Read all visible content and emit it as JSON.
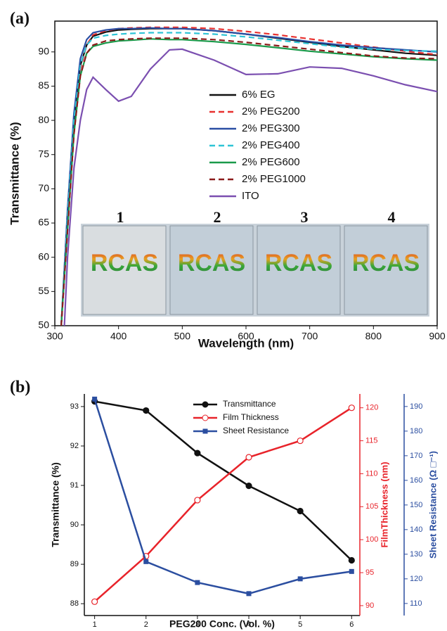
{
  "chart_data": [
    {
      "type": "line",
      "panel": "(a)",
      "xlabel": "Wavelength (nm)",
      "ylabel": "Transmittance (%)",
      "x": [
        310,
        315,
        320,
        330,
        340,
        350,
        360,
        380,
        400,
        420,
        450,
        480,
        500,
        550,
        600,
        650,
        700,
        750,
        800,
        850,
        900
      ],
      "xlim": [
        300,
        900
      ],
      "xticks": [
        300,
        400,
        500,
        600,
        700,
        800,
        900
      ],
      "ylim": [
        50,
        94.5
      ],
      "yticks": [
        50,
        55,
        60,
        65,
        70,
        75,
        80,
        85,
        90
      ],
      "legend": "center",
      "series": [
        {
          "name": "6% EG",
          "color": "#111111",
          "dash": false,
          "values": [
            50,
            58,
            66,
            80,
            88,
            91,
            92.3,
            92.9,
            93.2,
            93.3,
            93.4,
            93.4,
            93.4,
            93.1,
            92.6,
            92,
            91.4,
            90.8,
            90.3,
            89.8,
            89.5
          ]
        },
        {
          "name": "2% PEG200",
          "color": "#e8312f",
          "dash": true,
          "values": [
            50,
            57.5,
            65,
            79,
            87.5,
            91,
            92.5,
            93.1,
            93.4,
            93.5,
            93.6,
            93.6,
            93.6,
            93.4,
            93,
            92.5,
            91.9,
            91.3,
            90.7,
            90.1,
            89.6
          ]
        },
        {
          "name": "2% PEG300",
          "color": "#2a4ea3",
          "dash": false,
          "values": [
            50,
            58.5,
            67,
            81,
            89,
            91.8,
            92.8,
            93.2,
            93.4,
            93.4,
            93.5,
            93.4,
            93.4,
            93.1,
            92.6,
            92.1,
            91.5,
            91,
            90.6,
            90.3,
            90
          ]
        },
        {
          "name": "2% PEG400",
          "color": "#2ec4d6",
          "dash": true,
          "values": [
            50,
            58,
            66,
            80,
            88,
            91,
            92,
            92.4,
            92.6,
            92.7,
            92.8,
            92.8,
            92.8,
            92.6,
            92.2,
            91.7,
            91.2,
            90.7,
            90.4,
            90.2,
            90.1
          ]
        },
        {
          "name": "2% PEG600",
          "color": "#1a9a4a",
          "dash": false,
          "values": [
            50,
            57,
            64,
            78,
            86.5,
            89.8,
            90.8,
            91.3,
            91.6,
            91.7,
            91.9,
            91.8,
            91.8,
            91.5,
            91.1,
            90.6,
            90.1,
            89.7,
            89.3,
            89,
            88.8
          ]
        },
        {
          "name": "2% PEG1000",
          "color": "#8b1a1a",
          "dash": true,
          "values": [
            50,
            57,
            64,
            78,
            86.5,
            89.8,
            91,
            91.6,
            91.8,
            91.9,
            92,
            92,
            92,
            91.8,
            91.4,
            90.9,
            90.4,
            89.9,
            89.4,
            89.1,
            89
          ]
        },
        {
          "name": "ITO",
          "color": "#7b4fb0",
          "dash": false,
          "values": [
            null,
            50,
            60,
            73,
            80,
            84.5,
            86.3,
            84.5,
            82.8,
            83.5,
            87.5,
            90.3,
            90.4,
            88.8,
            86.7,
            86.8,
            87.8,
            87.6,
            86.5,
            85.2,
            84.2
          ]
        }
      ],
      "inset": {
        "labels": [
          "1",
          "2",
          "3",
          "4"
        ],
        "texts": [
          "RCAS",
          "RCAS",
          "RCAS",
          "RCAS"
        ]
      }
    },
    {
      "type": "line",
      "panel": "(b)",
      "xlabel": "PEG200 Conc. (Vol. %)",
      "ylabel": "Transmittance (%)",
      "y2label": "FilmThickness (nm)",
      "y3label": "Sheet Resistance (Ω □⁻¹)",
      "x": [
        1,
        2,
        3,
        4,
        5,
        6
      ],
      "xlim": [
        0.8,
        6.16
      ],
      "xticks": [
        1,
        2,
        3,
        4,
        5,
        6
      ],
      "ylim": [
        87.7,
        93.32
      ],
      "yticks": [
        88,
        89,
        90,
        91,
        92,
        93
      ],
      "y2lim": [
        88.5,
        122.1
      ],
      "y2ticks": [
        90,
        95,
        100,
        105,
        110,
        115,
        120
      ],
      "y3lim": [
        105.1,
        195.1
      ],
      "y3ticks": [
        110,
        120,
        130,
        140,
        150,
        160,
        170,
        180,
        190
      ],
      "legend": "upper center",
      "series": [
        {
          "name": "Transmittance",
          "color": "#111111",
          "marker": "circle",
          "values": [
            93.13,
            92.9,
            91.82,
            90.99,
            90.35,
            89.1
          ]
        },
        {
          "name": "Film Thickness",
          "color": "#e8232a",
          "marker": "open-circle",
          "axis": "y2",
          "values": [
            90.6,
            97.5,
            106,
            112.5,
            115,
            120
          ]
        },
        {
          "name": "Sheet Resistance",
          "color": "#2b4ea0",
          "marker": "square",
          "axis": "y3",
          "values": [
            193,
            127,
            118.5,
            114,
            120,
            123
          ]
        }
      ]
    }
  ]
}
